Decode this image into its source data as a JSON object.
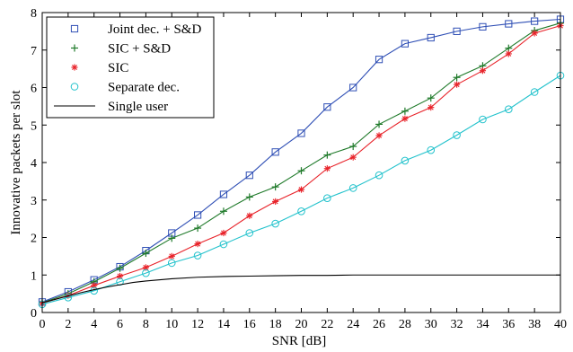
{
  "chart_data": {
    "type": "line",
    "xlabel": "SNR [dB]",
    "ylabel": "Innovative packets per slot",
    "xlim": [
      0,
      40
    ],
    "ylim": [
      0,
      8
    ],
    "xticks": [
      0,
      2,
      4,
      6,
      8,
      10,
      12,
      14,
      16,
      18,
      20,
      22,
      24,
      26,
      28,
      30,
      32,
      34,
      36,
      38,
      40
    ],
    "yticks": [
      0,
      1,
      2,
      3,
      4,
      5,
      6,
      7,
      8
    ],
    "legend_position": "top-left",
    "grid": false,
    "series": [
      {
        "name": "Joint dec. + S&D",
        "color": "#2f4fb5",
        "marker": "square",
        "x": [
          0,
          2,
          4,
          6,
          8,
          10,
          12,
          14,
          16,
          18,
          20,
          22,
          24,
          26,
          28,
          30,
          32,
          34,
          36,
          38,
          40
        ],
        "y": [
          0.28,
          0.55,
          0.87,
          1.22,
          1.65,
          2.12,
          2.6,
          3.15,
          3.66,
          4.28,
          4.78,
          5.48,
          6.0,
          6.75,
          7.17,
          7.33,
          7.5,
          7.62,
          7.7,
          7.77,
          7.82
        ]
      },
      {
        "name": "SIC + S&D",
        "color": "#1f7a2a",
        "marker": "plus",
        "x": [
          0,
          2,
          4,
          6,
          8,
          10,
          12,
          14,
          16,
          18,
          20,
          22,
          24,
          26,
          28,
          30,
          32,
          34,
          36,
          38,
          40
        ],
        "y": [
          0.26,
          0.5,
          0.82,
          1.18,
          1.58,
          1.98,
          2.25,
          2.7,
          3.08,
          3.35,
          3.78,
          4.2,
          4.43,
          5.02,
          5.37,
          5.72,
          6.27,
          6.58,
          7.05,
          7.52,
          7.72
        ]
      },
      {
        "name": "SIC",
        "color": "#e8232a",
        "marker": "asterisk",
        "x": [
          0,
          2,
          4,
          6,
          8,
          10,
          12,
          14,
          16,
          18,
          20,
          22,
          24,
          26,
          28,
          30,
          32,
          34,
          36,
          38,
          40
        ],
        "y": [
          0.25,
          0.45,
          0.72,
          0.97,
          1.2,
          1.5,
          1.83,
          2.12,
          2.58,
          2.96,
          3.28,
          3.84,
          4.14,
          4.72,
          5.17,
          5.47,
          6.08,
          6.45,
          6.9,
          7.45,
          7.65
        ]
      },
      {
        "name": "Separate dec.",
        "color": "#22c2cc",
        "marker": "circle",
        "x": [
          0,
          2,
          4,
          6,
          8,
          10,
          12,
          14,
          16,
          18,
          20,
          22,
          24,
          26,
          28,
          30,
          32,
          34,
          36,
          38,
          40
        ],
        "y": [
          0.22,
          0.4,
          0.58,
          0.82,
          1.05,
          1.32,
          1.52,
          1.82,
          2.12,
          2.37,
          2.7,
          3.05,
          3.32,
          3.66,
          4.05,
          4.33,
          4.73,
          5.15,
          5.42,
          5.88,
          6.32
        ]
      },
      {
        "name": "Single user",
        "color": "#000000",
        "marker": "none",
        "x": [
          0,
          1,
          2,
          3,
          4,
          5,
          6,
          7,
          8,
          9,
          10,
          12,
          14,
          16,
          18,
          20,
          22,
          24,
          26,
          28,
          30,
          32,
          34,
          36,
          38,
          40
        ],
        "y": [
          0.26,
          0.35,
          0.44,
          0.53,
          0.61,
          0.68,
          0.74,
          0.8,
          0.84,
          0.87,
          0.9,
          0.94,
          0.96,
          0.97,
          0.98,
          0.99,
          0.99,
          1.0,
          1.0,
          1.0,
          1.0,
          1.0,
          1.0,
          1.0,
          1.0,
          1.0
        ]
      }
    ]
  }
}
